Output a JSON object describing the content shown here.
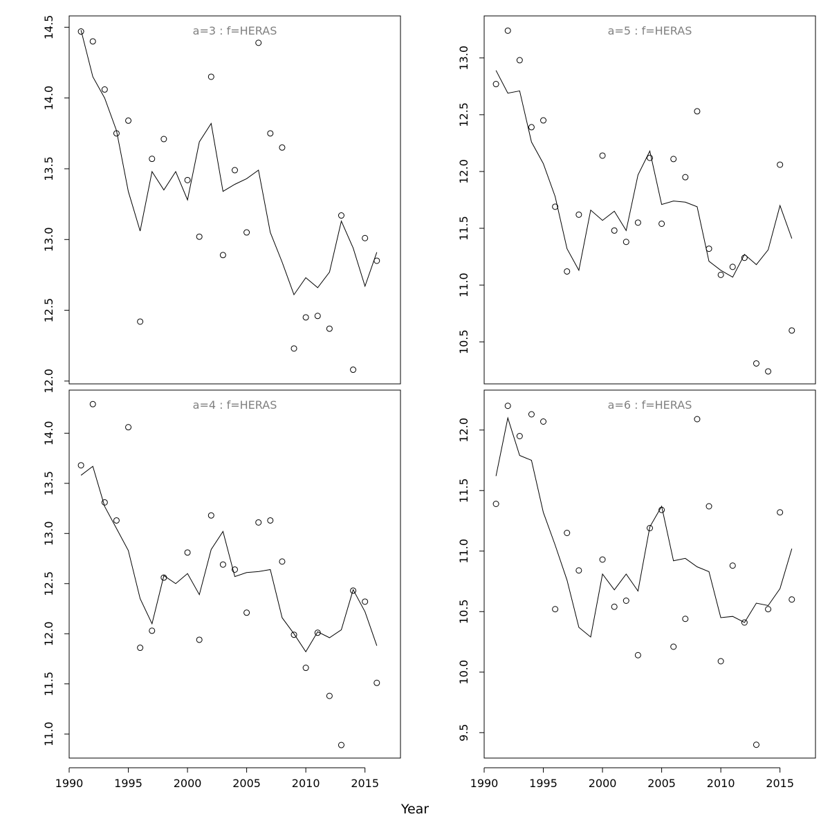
{
  "xlabel": "Year",
  "chart_data": [
    {
      "type": "line",
      "title": "a=3  :  f=HERAS",
      "x": [
        1991,
        1992,
        1993,
        1994,
        1995,
        1996,
        1997,
        1998,
        1999,
        2000,
        2001,
        2002,
        2003,
        2004,
        2005,
        2006,
        2007,
        2008,
        2009,
        2010,
        2011,
        2012,
        2013,
        2014,
        2015,
        2016
      ],
      "xlim": [
        1990,
        2018
      ],
      "xticks": [
        1990,
        1995,
        2000,
        2005,
        2010,
        2015
      ],
      "ylim": [
        11.98,
        14.58
      ],
      "yticks": [
        12.0,
        12.5,
        13.0,
        13.5,
        14.0,
        14.5
      ],
      "series": [
        {
          "kind": "line",
          "values": [
            14.48,
            14.15,
            14.0,
            13.77,
            13.34,
            13.06,
            13.48,
            13.35,
            13.48,
            13.28,
            13.69,
            13.82,
            13.34,
            13.39,
            13.43,
            13.49,
            13.05,
            12.84,
            12.61,
            12.73,
            12.66,
            12.77,
            13.13,
            12.94,
            12.67,
            12.91
          ]
        },
        {
          "kind": "points",
          "x": [
            1991,
            1992,
            1993,
            1994,
            1995,
            1996,
            1997,
            1998,
            2000,
            2001,
            2002,
            2003,
            2004,
            2005,
            2006,
            2007,
            2008,
            2009,
            2010,
            2011,
            2012,
            2013,
            2014,
            2015,
            2016
          ],
          "values": [
            14.47,
            14.4,
            14.06,
            13.75,
            13.84,
            12.42,
            13.57,
            13.71,
            13.42,
            13.02,
            14.15,
            12.89,
            13.49,
            13.05,
            14.39,
            13.75,
            13.65,
            12.23,
            12.45,
            12.46,
            12.37,
            13.17,
            12.08,
            13.01,
            12.85
          ]
        }
      ]
    },
    {
      "type": "line",
      "title": "a=5  :  f=HERAS",
      "x": [
        1991,
        1992,
        1993,
        1994,
        1995,
        1996,
        1997,
        1998,
        1999,
        2000,
        2001,
        2002,
        2003,
        2004,
        2005,
        2006,
        2007,
        2008,
        2009,
        2010,
        2011,
        2012,
        2013,
        2014,
        2015,
        2016
      ],
      "xlim": [
        1990,
        2018
      ],
      "xticks": [
        1990,
        1995,
        2000,
        2005,
        2010,
        2015
      ],
      "ylim": [
        10.13,
        13.37
      ],
      "yticks": [
        10.5,
        11.0,
        11.5,
        12.0,
        12.5,
        13.0
      ],
      "series": [
        {
          "kind": "line",
          "values": [
            12.89,
            12.69,
            12.71,
            12.26,
            12.07,
            11.78,
            11.32,
            11.13,
            11.66,
            11.57,
            11.65,
            11.48,
            11.97,
            12.18,
            11.71,
            11.74,
            11.73,
            11.69,
            11.21,
            11.13,
            11.07,
            11.27,
            11.18,
            11.31,
            11.7,
            11.41
          ]
        },
        {
          "kind": "points",
          "x": [
            1991,
            1992,
            1993,
            1994,
            1995,
            1996,
            1997,
            1998,
            2000,
            2001,
            2002,
            2003,
            2004,
            2005,
            2006,
            2007,
            2008,
            2009,
            2010,
            2011,
            2012,
            2013,
            2014,
            2015,
            2016
          ],
          "values": [
            12.77,
            13.24,
            12.98,
            12.39,
            12.45,
            11.69,
            11.12,
            11.62,
            12.14,
            11.48,
            11.38,
            11.55,
            12.12,
            11.54,
            12.11,
            11.95,
            12.53,
            11.32,
            11.09,
            11.16,
            11.24,
            10.31,
            10.24,
            12.06,
            10.6
          ]
        }
      ]
    },
    {
      "type": "line",
      "title": "a=4  :  f=HERAS",
      "x": [
        1991,
        1992,
        1993,
        1994,
        1995,
        1996,
        1997,
        1998,
        1999,
        2000,
        2001,
        2002,
        2003,
        2004,
        2005,
        2006,
        2007,
        2008,
        2009,
        2010,
        2011,
        2012,
        2013,
        2014,
        2015,
        2016
      ],
      "xlim": [
        1990,
        2018
      ],
      "xticks": [
        1990,
        1995,
        2000,
        2005,
        2010,
        2015
      ],
      "ylim": [
        10.76,
        14.43
      ],
      "yticks": [
        11.0,
        11.5,
        12.0,
        12.5,
        13.0,
        13.5,
        14.0
      ],
      "series": [
        {
          "kind": "line",
          "values": [
            13.58,
            13.67,
            13.27,
            13.05,
            12.83,
            12.35,
            12.1,
            12.58,
            12.5,
            12.6,
            12.39,
            12.84,
            13.02,
            12.57,
            12.61,
            12.62,
            12.64,
            12.16,
            12.0,
            11.82,
            12.02,
            11.96,
            12.04,
            12.44,
            12.22,
            11.88
          ]
        },
        {
          "kind": "points",
          "x": [
            1991,
            1992,
            1993,
            1994,
            1995,
            1996,
            1997,
            1998,
            2000,
            2001,
            2002,
            2003,
            2004,
            2005,
            2006,
            2007,
            2008,
            2009,
            2010,
            2011,
            2012,
            2013,
            2014,
            2015,
            2016
          ],
          "values": [
            13.68,
            14.29,
            13.31,
            13.13,
            14.06,
            11.86,
            12.03,
            12.56,
            12.81,
            11.94,
            13.18,
            12.69,
            12.64,
            12.21,
            13.11,
            13.13,
            12.72,
            11.99,
            11.66,
            12.01,
            11.38,
            10.89,
            12.43,
            12.32,
            11.51
          ]
        }
      ]
    },
    {
      "type": "line",
      "title": "a=6  :  f=HERAS",
      "x": [
        1991,
        1992,
        1993,
        1994,
        1995,
        1996,
        1997,
        1998,
        1999,
        2000,
        2001,
        2002,
        2003,
        2004,
        2005,
        2006,
        2007,
        2008,
        2009,
        2010,
        2011,
        2012,
        2013,
        2014,
        2015,
        2016
      ],
      "xlim": [
        1990,
        2018
      ],
      "xticks": [
        1990,
        1995,
        2000,
        2005,
        2010,
        2015
      ],
      "ylim": [
        9.29,
        12.33
      ],
      "yticks": [
        9.5,
        10.0,
        10.5,
        11.0,
        11.5,
        12.0
      ],
      "series": [
        {
          "kind": "line",
          "values": [
            11.62,
            12.1,
            11.79,
            11.75,
            11.32,
            11.05,
            10.76,
            10.37,
            10.29,
            10.81,
            10.68,
            10.81,
            10.67,
            11.2,
            11.37,
            10.92,
            10.94,
            10.87,
            10.83,
            10.45,
            10.46,
            10.41,
            10.57,
            10.55,
            10.69,
            11.02
          ]
        },
        {
          "kind": "points",
          "x": [
            1991,
            1992,
            1993,
            1994,
            1995,
            1996,
            1997,
            1998,
            2000,
            2001,
            2002,
            2003,
            2004,
            2005,
            2006,
            2007,
            2008,
            2009,
            2010,
            2011,
            2012,
            2013,
            2014,
            2015,
            2016
          ],
          "values": [
            11.39,
            12.2,
            11.95,
            12.13,
            12.07,
            10.52,
            11.15,
            10.84,
            10.93,
            10.54,
            10.59,
            10.14,
            11.19,
            11.34,
            10.21,
            10.44,
            12.09,
            11.37,
            10.09,
            10.88,
            10.41,
            9.4,
            10.52,
            11.32,
            10.6
          ]
        }
      ]
    }
  ]
}
